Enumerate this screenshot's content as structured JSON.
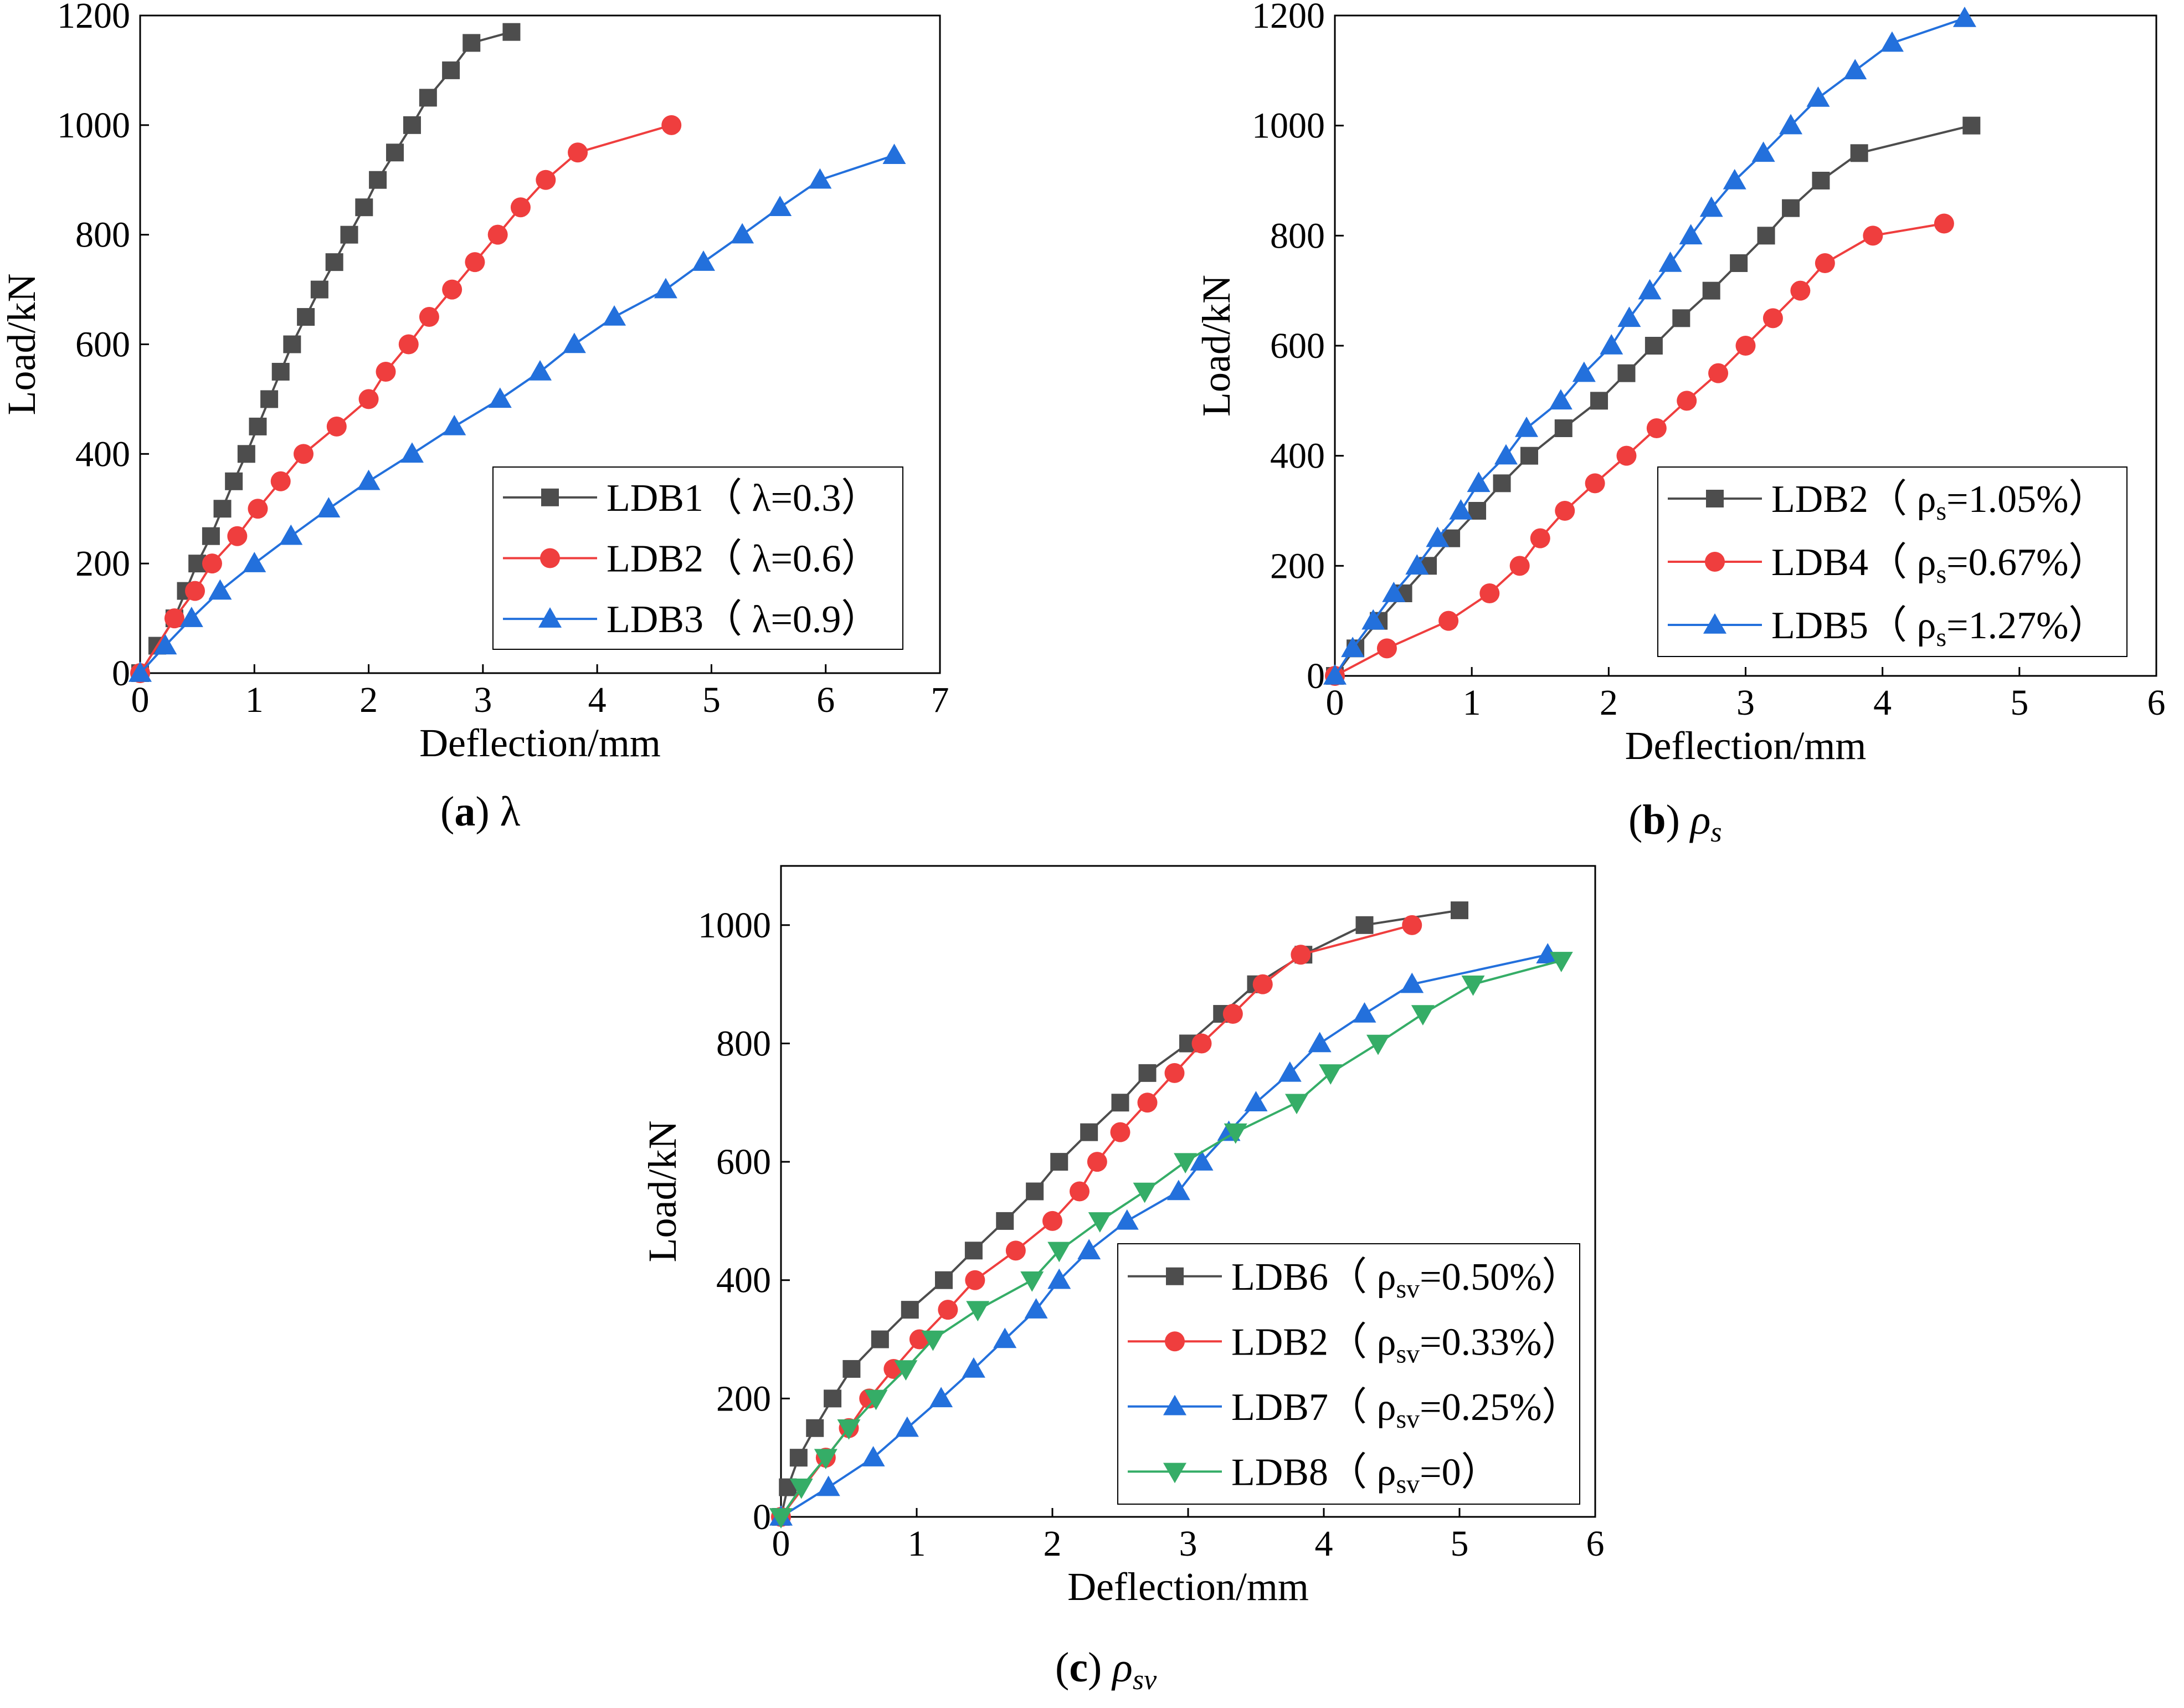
{
  "figure": {
    "panels": [
      {
        "id": "a",
        "caption_letter": "a",
        "caption_symbol": "λ",
        "caption_symbol_sub": ""
      },
      {
        "id": "b",
        "caption_letter": "b",
        "caption_symbol": "ρ",
        "caption_symbol_sub": "s"
      },
      {
        "id": "c",
        "caption_letter": "c",
        "caption_symbol": "ρ",
        "caption_symbol_sub": "sv"
      }
    ]
  },
  "colors": {
    "series_black": "#4d4d4d",
    "series_red": "#ef3e3e",
    "series_blue": "#2370dc",
    "series_green": "#35ad67"
  },
  "chart_data": [
    {
      "id": "a",
      "type": "line",
      "xlabel": "Deflection/mm",
      "ylabel": "Load/kN",
      "xlim": [
        0,
        7
      ],
      "ylim": [
        0,
        1200
      ],
      "xticks": [
        0,
        1,
        2,
        3,
        4,
        5,
        6,
        7
      ],
      "yticks": [
        0,
        200,
        400,
        600,
        800,
        1000,
        1200
      ],
      "grid": false,
      "legend_position": "bottom-right",
      "series": [
        {
          "name": "LDB1（ λ=0.3）",
          "name_main": "LDB1（ λ=0.3）",
          "name_sub": "",
          "name_tail": "",
          "color": "#4d4d4d",
          "marker": "square",
          "x": [
            0,
            0.15,
            0.3,
            0.4,
            0.5,
            0.62,
            0.72,
            0.82,
            0.93,
            1.03,
            1.13,
            1.23,
            1.33,
            1.45,
            1.57,
            1.7,
            1.83,
            1.96,
            2.08,
            2.23,
            2.38,
            2.52,
            2.72,
            2.9,
            3.25
          ],
          "y": [
            0,
            50,
            100,
            150,
            200,
            250,
            300,
            350,
            400,
            450,
            500,
            550,
            600,
            650,
            700,
            750,
            800,
            850,
            900,
            950,
            1000,
            1050,
            1100,
            1150,
            1170
          ]
        },
        {
          "name": "LDB2（ λ=0.6）",
          "name_main": "LDB2（ λ=0.6）",
          "name_sub": "",
          "name_tail": "",
          "color": "#ef3e3e",
          "marker": "circle",
          "x": [
            0,
            0.3,
            0.48,
            0.63,
            0.85,
            1.03,
            1.23,
            1.43,
            1.72,
            2.0,
            2.15,
            2.35,
            2.53,
            2.73,
            2.93,
            3.13,
            3.33,
            3.55,
            3.83,
            4.65
          ],
          "y": [
            0,
            100,
            150,
            200,
            250,
            300,
            350,
            400,
            450,
            500,
            550,
            600,
            650,
            700,
            750,
            800,
            850,
            900,
            950,
            1000
          ]
        },
        {
          "name": "LDB3（ λ=0.9）",
          "name_main": "LDB3（ λ=0.9）",
          "name_sub": "",
          "name_tail": "",
          "color": "#2370dc",
          "marker": "triangle-up",
          "x": [
            0,
            0.22,
            0.45,
            0.7,
            1.0,
            1.32,
            1.65,
            2.0,
            2.38,
            2.75,
            3.15,
            3.5,
            3.8,
            4.15,
            4.6,
            4.93,
            5.27,
            5.6,
            5.95,
            6.6
          ],
          "y": [
            0,
            50,
            100,
            150,
            200,
            250,
            300,
            350,
            400,
            450,
            500,
            550,
            600,
            650,
            700,
            750,
            800,
            850,
            900,
            945
          ]
        }
      ]
    },
    {
      "id": "b",
      "type": "line",
      "xlabel": "Deflection/mm",
      "ylabel": "Load/kN",
      "xlim": [
        0,
        6
      ],
      "ylim": [
        0,
        1200
      ],
      "xticks": [
        0,
        1,
        2,
        3,
        4,
        5,
        6
      ],
      "yticks": [
        0,
        200,
        400,
        600,
        800,
        1000,
        1200
      ],
      "grid": false,
      "legend_position": "bottom-right",
      "series": [
        {
          "name": "LDB2（ ρs=1.05%）",
          "name_main": "LDB2（ ρ",
          "name_sub": "s",
          "name_tail": "=1.05%）",
          "color": "#4d4d4d",
          "marker": "square",
          "x": [
            0,
            0.15,
            0.32,
            0.5,
            0.68,
            0.85,
            1.04,
            1.22,
            1.42,
            1.67,
            1.93,
            2.13,
            2.33,
            2.53,
            2.75,
            2.95,
            3.15,
            3.33,
            3.55,
            3.83,
            4.65
          ],
          "y": [
            0,
            50,
            100,
            150,
            200,
            250,
            300,
            350,
            400,
            450,
            500,
            550,
            600,
            650,
            700,
            750,
            800,
            850,
            900,
            950,
            1000
          ]
        },
        {
          "name": "LDB4（ ρs=0.67%）",
          "name_main": "LDB4（ ρ",
          "name_sub": "s",
          "name_tail": "=0.67%）",
          "color": "#ef3e3e",
          "marker": "circle",
          "x": [
            0,
            0.38,
            0.83,
            1.13,
            1.35,
            1.5,
            1.68,
            1.9,
            2.13,
            2.35,
            2.57,
            2.8,
            3.0,
            3.2,
            3.4,
            3.58,
            3.93,
            4.45
          ],
          "y": [
            0,
            50,
            100,
            150,
            200,
            250,
            300,
            350,
            400,
            450,
            500,
            550,
            600,
            650,
            700,
            750,
            800,
            822
          ]
        },
        {
          "name": "LDB5（ ρs=1.27%）",
          "name_main": "LDB5（ ρ",
          "name_sub": "s",
          "name_tail": "=1.27%）",
          "color": "#2370dc",
          "marker": "triangle-up",
          "x": [
            0,
            0.13,
            0.28,
            0.43,
            0.6,
            0.75,
            0.92,
            1.05,
            1.25,
            1.4,
            1.65,
            1.82,
            2.02,
            2.15,
            2.3,
            2.45,
            2.6,
            2.75,
            2.92,
            3.13,
            3.33,
            3.53,
            3.8,
            4.07,
            4.6
          ],
          "y": [
            0,
            50,
            100,
            150,
            200,
            250,
            300,
            350,
            400,
            450,
            500,
            550,
            600,
            650,
            700,
            750,
            800,
            850,
            900,
            950,
            1000,
            1050,
            1100,
            1150,
            1195
          ]
        }
      ]
    },
    {
      "id": "c",
      "type": "line",
      "xlabel": "Deflection/mm",
      "ylabel": "Load/kN",
      "xlim": [
        0,
        6
      ],
      "ylim": [
        0,
        1100
      ],
      "xticks": [
        0,
        1,
        2,
        3,
        4,
        5,
        6
      ],
      "yticks": [
        0,
        200,
        400,
        600,
        800,
        1000
      ],
      "grid": false,
      "legend_position": "bottom-right",
      "series": [
        {
          "name": "LDB6（ ρsv=0.50%）",
          "name_main": "LDB6（ ρ",
          "name_sub": "sv",
          "name_tail": "=0.50%）",
          "color": "#4d4d4d",
          "marker": "square",
          "x": [
            0,
            0.05,
            0.13,
            0.25,
            0.38,
            0.52,
            0.73,
            0.95,
            1.2,
            1.42,
            1.65,
            1.87,
            2.05,
            2.27,
            2.5,
            2.7,
            3.0,
            3.25,
            3.5,
            3.85,
            4.3,
            5.0
          ],
          "y": [
            0,
            50,
            100,
            150,
            200,
            250,
            300,
            350,
            400,
            450,
            500,
            550,
            600,
            650,
            700,
            750,
            800,
            850,
            900,
            950,
            1000,
            1025
          ]
        },
        {
          "name": "LDB2（ ρsv=0.33%）",
          "name_main": "LDB2（ ρ",
          "name_sub": "sv",
          "name_tail": "=0.33%）",
          "color": "#ef3e3e",
          "marker": "circle",
          "x": [
            0,
            0.33,
            0.5,
            0.65,
            0.83,
            1.02,
            1.23,
            1.43,
            1.73,
            2.0,
            2.2,
            2.33,
            2.5,
            2.7,
            2.9,
            3.1,
            3.33,
            3.55,
            3.83,
            4.65
          ],
          "y": [
            0,
            100,
            150,
            200,
            250,
            300,
            350,
            400,
            450,
            500,
            550,
            600,
            650,
            700,
            750,
            800,
            850,
            900,
            950,
            1000
          ]
        },
        {
          "name": "LDB7（ ρsv=0.25%）",
          "name_main": "LDB7（ ρ",
          "name_sub": "sv",
          "name_tail": "=0.25%）",
          "color": "#2370dc",
          "marker": "triangle-up",
          "x": [
            0,
            0.35,
            0.68,
            0.93,
            1.18,
            1.42,
            1.65,
            1.88,
            2.05,
            2.27,
            2.55,
            2.93,
            3.1,
            3.3,
            3.5,
            3.75,
            3.97,
            4.3,
            4.65,
            5.65
          ],
          "y": [
            0,
            50,
            100,
            150,
            200,
            250,
            300,
            350,
            400,
            450,
            500,
            550,
            600,
            650,
            700,
            750,
            800,
            850,
            900,
            950
          ]
        },
        {
          "name": "LDB8（ ρsv=0）",
          "name_main": "LDB8（ ρ",
          "name_sub": "sv",
          "name_tail": "=0）",
          "color": "#35ad67",
          "marker": "triangle-down",
          "x": [
            0,
            0.15,
            0.33,
            0.5,
            0.7,
            0.92,
            1.12,
            1.45,
            1.85,
            2.05,
            2.35,
            2.68,
            2.98,
            3.35,
            3.8,
            4.05,
            4.4,
            4.73,
            5.1,
            5.75
          ],
          "y": [
            0,
            50,
            100,
            150,
            200,
            250,
            300,
            350,
            400,
            450,
            500,
            550,
            600,
            650,
            700,
            750,
            800,
            850,
            900,
            940
          ]
        }
      ]
    }
  ]
}
